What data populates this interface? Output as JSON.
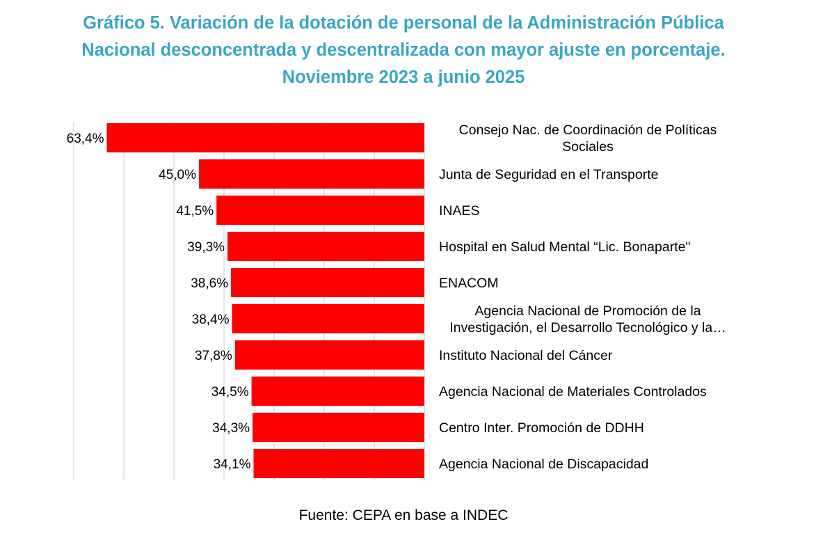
{
  "title_lines": [
    "Gráfico 5. Variación de la dotación de personal de la Administración Pública",
    "Nacional desconcentrada y descentralizada con mayor ajuste en porcentaje.",
    "Noviembre 2023 a junio 2025"
  ],
  "source": "Fuente: CEPA en base a INDEC",
  "colors": {
    "title": "#3aa6c3",
    "bar": "#ff0000",
    "grid": "#dce9f1"
  },
  "chart_data": {
    "type": "bar",
    "orientation": "horizontal",
    "direction": "right-to-left",
    "grid": true,
    "categories": [
      [
        "Consejo Nac. de Coordinación de Políticas",
        "Sociales"
      ],
      [
        "Junta de Seguridad en el Transporte"
      ],
      [
        "INAES"
      ],
      [
        "Hospital en Salud Mental “Lic. Bonaparte\""
      ],
      [
        "ENACOM"
      ],
      [
        "Agencia Nacional de Promoción de la",
        "Investigación, el Desarrollo Tecnológico y la…"
      ],
      [
        "Instituto Nacional del Cáncer"
      ],
      [
        "Agencia Nacional de Materiales Controlados"
      ],
      [
        "Centro Inter. Promoción de DDHH"
      ],
      [
        "Agencia Nacional de Discapacidad"
      ]
    ],
    "values": [
      63.4,
      45.0,
      41.5,
      39.3,
      38.6,
      38.4,
      37.8,
      34.5,
      34.3,
      34.1
    ],
    "value_labels": [
      "63,4%",
      "45,0%",
      "41,5%",
      "39,3%",
      "38,6%",
      "38,4%",
      "37,8%",
      "34,5%",
      "34,3%",
      "34,1%"
    ],
    "xlim": [
      0,
      70
    ],
    "grid_step": 10
  }
}
